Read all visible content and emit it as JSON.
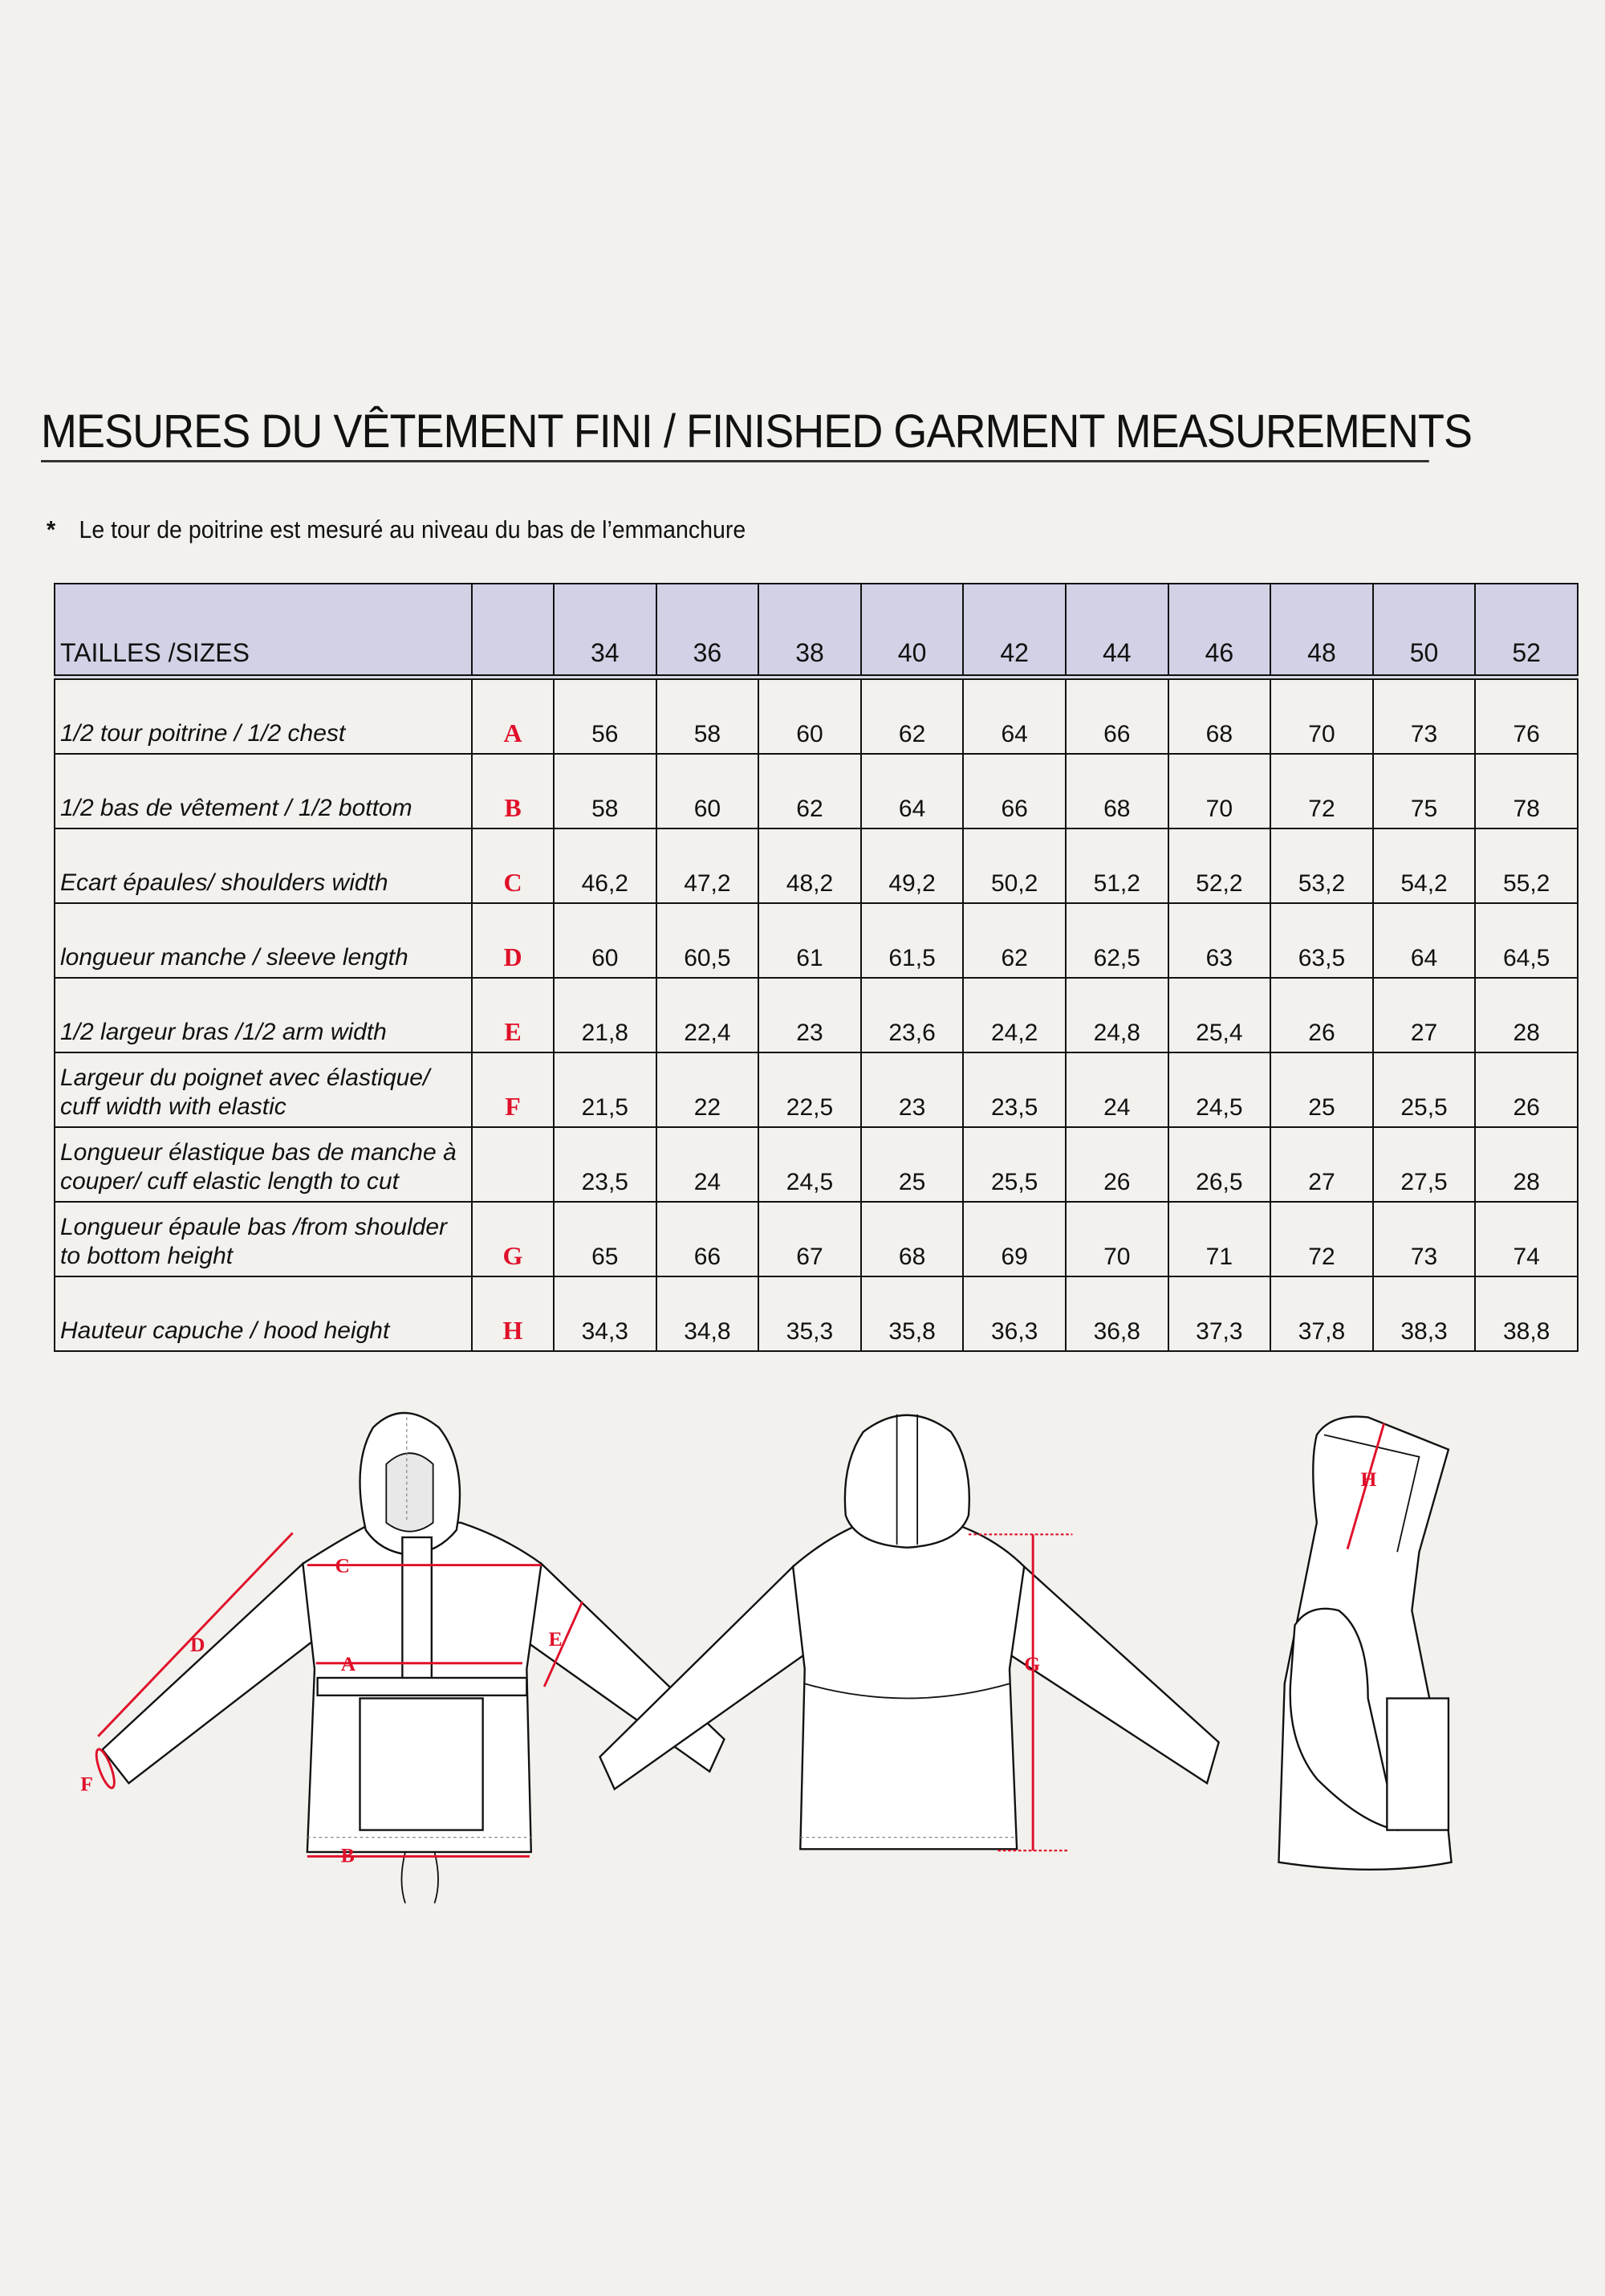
{
  "title": "MESURES DU VÊTEMENT FINI / FINISHED GARMENT MEASUREMENTS",
  "note": {
    "marker": "*",
    "text": "Le tour de poitrine est mesuré au niveau du bas de l’emmanchure"
  },
  "table": {
    "header_label": "TAILLES /SIZES",
    "sizes": [
      "34",
      "36",
      "38",
      "40",
      "42",
      "44",
      "46",
      "48",
      "50",
      "52"
    ],
    "rows": [
      {
        "label": "1/2 tour poitrine / 1/2 chest",
        "letter": "A",
        "values": [
          "56",
          "58",
          "60",
          "62",
          "64",
          "66",
          "68",
          "70",
          "73",
          "76"
        ]
      },
      {
        "label": "1/2 bas de vêtement / 1/2 bottom",
        "letter": "B",
        "values": [
          "58",
          "60",
          "62",
          "64",
          "66",
          "68",
          "70",
          "72",
          "75",
          "78"
        ]
      },
      {
        "label": "Ecart épaules/ shoulders width",
        "letter": "C",
        "values": [
          "46,2",
          "47,2",
          "48,2",
          "49,2",
          "50,2",
          "51,2",
          "52,2",
          "53,2",
          "54,2",
          "55,2"
        ]
      },
      {
        "label": "longueur manche  / sleeve length",
        "letter": "D",
        "values": [
          "60",
          "60,5",
          "61",
          "61,5",
          "62",
          "62,5",
          "63",
          "63,5",
          "64",
          "64,5"
        ]
      },
      {
        "label": "1/2 largeur bras /1/2  arm width",
        "letter": "E",
        "values": [
          "21,8",
          "22,4",
          "23",
          "23,6",
          "24,2",
          "24,8",
          "25,4",
          "26",
          "27",
          "28"
        ]
      },
      {
        "label": "Largeur du  poignet avec élastique/ cuff width with elastic",
        "letter": "F",
        "values": [
          "21,5",
          "22",
          "22,5",
          "23",
          "23,5",
          "24",
          "24,5",
          "25",
          "25,5",
          "26"
        ]
      },
      {
        "label": "Longueur élastique bas de manche à couper/ cuff elastic length to cut",
        "letter": "",
        "values": [
          "23,5",
          "24",
          "24,5",
          "25",
          "25,5",
          "26",
          "26,5",
          "27",
          "27,5",
          "28"
        ]
      },
      {
        "label": "Longueur épaule bas /from shoulder to bottom height",
        "letter": "G",
        "values": [
          "65",
          "66",
          "67",
          "68",
          "69",
          "70",
          "71",
          "72",
          "73",
          "74"
        ]
      },
      {
        "label": "Hauteur capuche / hood height",
        "letter": "H",
        "values": [
          "34,3",
          "34,8",
          "35,3",
          "35,8",
          "36,3",
          "36,8",
          "37,3",
          "37,8",
          "38,3",
          "38,8"
        ]
      }
    ]
  },
  "diagram": {
    "labels": {
      "A": "A",
      "B": "B",
      "C": "C",
      "D": "D",
      "E": "E",
      "F": "F",
      "G": "G",
      "H": "H"
    },
    "measure_color": "#e0102a",
    "header_color": "#d2d2e6"
  }
}
